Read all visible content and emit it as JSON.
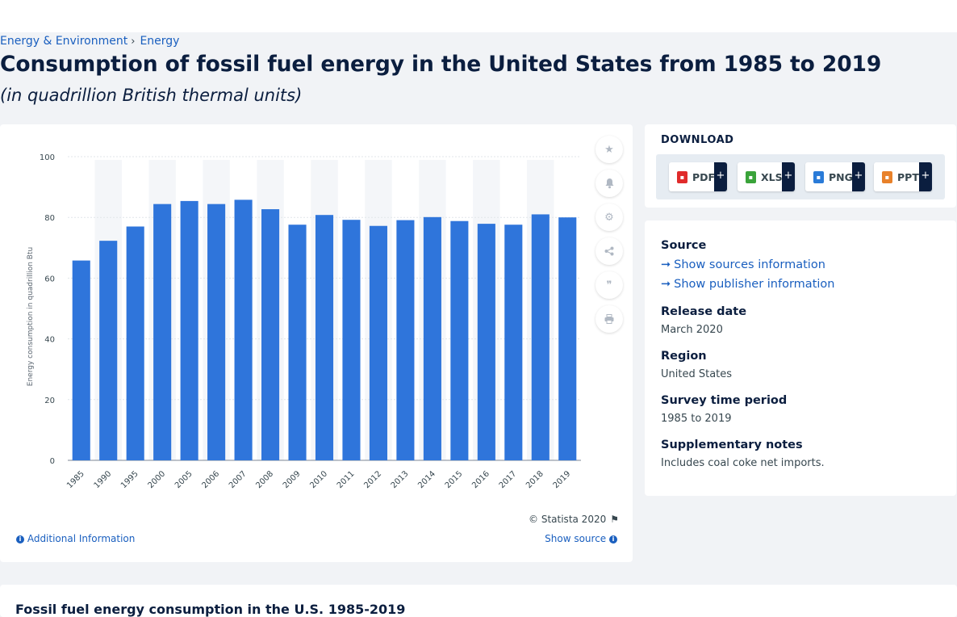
{
  "breadcrumb": {
    "items": [
      "Energy & Environment",
      "Energy"
    ],
    "separator": "›"
  },
  "title": "Consumption of fossil fuel energy in the United States from 1985 to 2019",
  "subtitle": "(in quadrillion British thermal units)",
  "chart_data": {
    "type": "bar",
    "title": "",
    "xlabel": "",
    "ylabel": "Energy consumption in quadrillion Btu",
    "categories": [
      "1985",
      "1990",
      "1995",
      "2000",
      "2005",
      "2006",
      "2007",
      "2008",
      "2009",
      "2010",
      "2011",
      "2012",
      "2013",
      "2014",
      "2015",
      "2016",
      "2017",
      "2018",
      "2019"
    ],
    "values": [
      65.8,
      72.3,
      77.0,
      84.4,
      85.4,
      84.4,
      85.8,
      82.7,
      77.6,
      80.8,
      79.2,
      77.2,
      79.1,
      80.1,
      78.8,
      77.9,
      77.6,
      81.0,
      80.0
    ],
    "ylim": [
      0,
      100
    ],
    "yticks": [
      0,
      20,
      40,
      60,
      80,
      100
    ],
    "grid": true,
    "bar_color": "#2f75db",
    "band_color": "#f4f6f9"
  },
  "chart_footer": {
    "copyright": "© Statista 2020",
    "additional_info": "Additional Information",
    "show_source": "Show source"
  },
  "tools": [
    "star-icon",
    "bell-icon",
    "gear-icon",
    "share-icon",
    "quote-icon",
    "print-icon"
  ],
  "download": {
    "title": "DOWNLOAD",
    "buttons": [
      {
        "label": "PDF",
        "color": "#e02b2b"
      },
      {
        "label": "XLS",
        "color": "#3aa33a"
      },
      {
        "label": "PNG",
        "color": "#2a7bd8"
      },
      {
        "label": "PPT",
        "color": "#e8812a"
      }
    ],
    "plus": "+"
  },
  "info": {
    "source_heading": "Source",
    "show_sources": "Show sources information",
    "show_publisher": "Show publisher information",
    "release_heading": "Release date",
    "release_value": "March 2020",
    "region_heading": "Region",
    "region_value": "United States",
    "survey_heading": "Survey time period",
    "survey_value": "1985 to 2019",
    "notes_heading": "Supplementary notes",
    "notes_value": "Includes coal coke net imports."
  },
  "bottom": {
    "title": "Fossil fuel energy consumption in the U.S. 1985-2019"
  }
}
